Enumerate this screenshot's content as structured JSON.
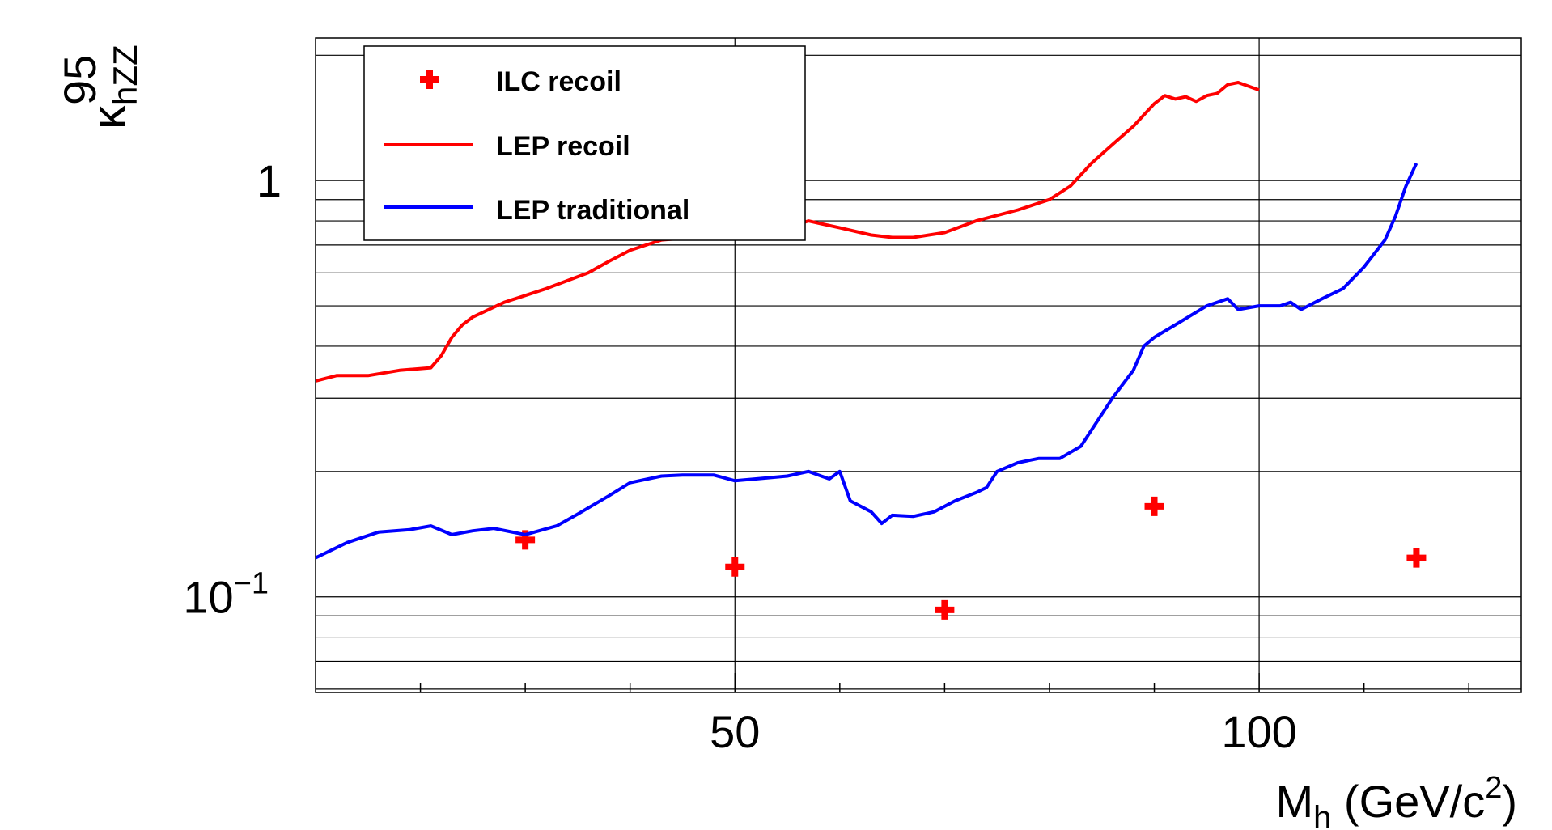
{
  "chart_data": {
    "type": "line",
    "xlabel": {
      "main": "M",
      "sub": "h",
      "unit_pre": " (GeV/c",
      "unit_sup": "2",
      "unit_post": ")"
    },
    "ylabel": {
      "main": "κ",
      "sup": "95",
      "sub": "hZZ"
    },
    "xlim": [
      10,
      125
    ],
    "ylim": [
      0.0589,
      2.2
    ],
    "y_scale": "log",
    "grid": true,
    "x_ticks": [
      {
        "value": 50,
        "label": "50"
      },
      {
        "value": 100,
        "label": "100"
      }
    ],
    "y_ticks": [
      {
        "value": 1,
        "label": "1",
        "base": "",
        "exp": ""
      },
      {
        "value": 0.1,
        "label": "",
        "base": "10",
        "exp": "−1"
      }
    ],
    "legend": {
      "placement": "top-left",
      "entries": [
        {
          "name": "ILC recoil",
          "style": "marker",
          "color": "#ff0000"
        },
        {
          "name": "LEP recoil",
          "style": "line",
          "color": "#ff0000"
        },
        {
          "name": "LEP traditional",
          "style": "line",
          "color": "#0000ff"
        }
      ]
    },
    "series": [
      {
        "name": "ILC recoil",
        "type": "scatter",
        "color": "#ff0000",
        "x": [
          30,
          50,
          70,
          90,
          115
        ],
        "y": [
          0.137,
          0.118,
          0.093,
          0.165,
          0.124
        ]
      },
      {
        "name": "LEP recoil",
        "type": "line",
        "color": "#ff0000",
        "x": [
          10,
          12,
          15,
          18,
          21,
          22,
          23,
          24,
          25,
          28,
          32,
          36,
          38,
          40,
          43,
          46,
          50,
          53,
          55,
          57,
          60,
          63,
          65,
          67,
          70,
          73,
          77,
          80,
          82,
          84,
          86,
          88,
          90,
          91,
          92,
          93,
          94,
          95,
          96,
          97,
          98,
          100
        ],
        "y": [
          0.33,
          0.34,
          0.34,
          0.35,
          0.355,
          0.38,
          0.42,
          0.45,
          0.47,
          0.51,
          0.55,
          0.6,
          0.64,
          0.68,
          0.72,
          0.73,
          0.75,
          0.8,
          0.77,
          0.8,
          0.77,
          0.74,
          0.73,
          0.73,
          0.75,
          0.8,
          0.85,
          0.9,
          0.97,
          1.1,
          1.22,
          1.35,
          1.53,
          1.6,
          1.57,
          1.59,
          1.55,
          1.6,
          1.62,
          1.7,
          1.72,
          1.65
        ]
      },
      {
        "name": "LEP traditional",
        "type": "line",
        "color": "#0000ff",
        "x": [
          10,
          13,
          16,
          19,
          21,
          23,
          25,
          27,
          30,
          33,
          35,
          38,
          40,
          43,
          45,
          48,
          50,
          52,
          55,
          57,
          59,
          60,
          61,
          63,
          64,
          65,
          67,
          69,
          71,
          73,
          74,
          75,
          77,
          79,
          81,
          83,
          86,
          88,
          89,
          90,
          92,
          95,
          97,
          98,
          100,
          102,
          103,
          104,
          106,
          108,
          110,
          112,
          113,
          114,
          115
        ],
        "y": [
          0.124,
          0.135,
          0.143,
          0.145,
          0.148,
          0.141,
          0.144,
          0.146,
          0.141,
          0.148,
          0.158,
          0.175,
          0.188,
          0.195,
          0.196,
          0.196,
          0.19,
          0.192,
          0.195,
          0.2,
          0.192,
          0.2,
          0.17,
          0.16,
          0.15,
          0.157,
          0.156,
          0.16,
          0.17,
          0.178,
          0.183,
          0.2,
          0.21,
          0.215,
          0.215,
          0.23,
          0.3,
          0.35,
          0.4,
          0.42,
          0.45,
          0.5,
          0.52,
          0.49,
          0.5,
          0.5,
          0.51,
          0.49,
          0.52,
          0.55,
          0.62,
          0.72,
          0.82,
          0.97,
          1.1
        ]
      }
    ]
  }
}
